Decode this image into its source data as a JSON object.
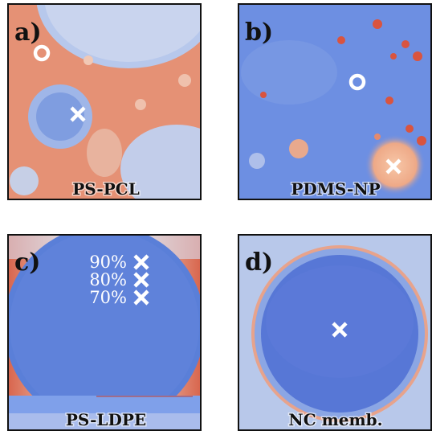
{
  "panels": [
    {
      "label": "a)",
      "name": "PS-PCL"
    },
    {
      "label": "b)",
      "name": "PDMS-NP"
    },
    {
      "label": "c)",
      "name": "PS-LDPE",
      "annotations": [
        "90%",
        "80%",
        "70%"
      ]
    },
    {
      "label": "d)",
      "name": "NC memb."
    }
  ]
}
